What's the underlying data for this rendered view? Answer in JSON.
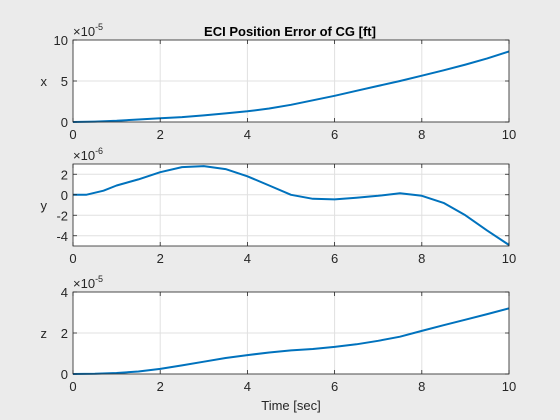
{
  "figure": {
    "title": "ECI Position Error of CG [ft]",
    "background": "#ebebeb",
    "axes_background": "#ffffff",
    "line_color": "#0072bd"
  },
  "chart_data": [
    {
      "type": "line",
      "title": "ECI Position Error of CG [ft]",
      "xlabel": "",
      "ylabel": "x",
      "xlim": [
        0,
        10
      ],
      "ylim": [
        0,
        10
      ],
      "exponent": {
        "base": "×10",
        "power": "-5"
      },
      "xticks": [
        0,
        2,
        4,
        6,
        8,
        10
      ],
      "xtick_labels": [
        "0",
        "2",
        "4",
        "6",
        "8",
        "10"
      ],
      "yticks": [
        0,
        5,
        10
      ],
      "ytick_labels": [
        "0",
        "5",
        "10"
      ],
      "grid": true,
      "series": [
        {
          "name": "x",
          "x": [
            0,
            0.5,
            1,
            1.5,
            2,
            2.5,
            3,
            3.5,
            4,
            4.5,
            5,
            5.5,
            6,
            6.5,
            7,
            7.5,
            8,
            8.5,
            9,
            9.5,
            10
          ],
          "y": [
            0,
            0.05,
            0.15,
            0.3,
            0.45,
            0.6,
            0.8,
            1.05,
            1.3,
            1.65,
            2.1,
            2.65,
            3.2,
            3.8,
            4.4,
            5.0,
            5.65,
            6.3,
            7.0,
            7.75,
            8.6
          ]
        }
      ]
    },
    {
      "type": "line",
      "title": "",
      "xlabel": "",
      "ylabel": "y",
      "xlim": [
        0,
        10
      ],
      "ylim": [
        -5,
        3
      ],
      "exponent": {
        "base": "×10",
        "power": "-6"
      },
      "xticks": [
        0,
        2,
        4,
        6,
        8,
        10
      ],
      "xtick_labels": [
        "0",
        "2",
        "4",
        "6",
        "8",
        "10"
      ],
      "yticks": [
        -4,
        -2,
        0,
        2
      ],
      "ytick_labels": [
        "-4",
        "-2",
        "0",
        "2"
      ],
      "grid": true,
      "series": [
        {
          "name": "y",
          "x": [
            0,
            0.3,
            0.7,
            1,
            1.5,
            2,
            2.5,
            3,
            3.5,
            4,
            4.5,
            5,
            5.5,
            6,
            6.5,
            7,
            7.5,
            8,
            8.5,
            9,
            9.5,
            10
          ],
          "y": [
            0,
            0,
            0.4,
            0.9,
            1.5,
            2.2,
            2.7,
            2.8,
            2.5,
            1.8,
            0.9,
            0.0,
            -0.4,
            -0.45,
            -0.3,
            -0.1,
            0.15,
            -0.1,
            -0.8,
            -2.0,
            -3.5,
            -4.9
          ]
        }
      ]
    },
    {
      "type": "line",
      "title": "",
      "xlabel": "Time [sec]",
      "ylabel": "z",
      "xlim": [
        0,
        10
      ],
      "ylim": [
        0,
        4
      ],
      "exponent": {
        "base": "×10",
        "power": "-5"
      },
      "xticks": [
        0,
        2,
        4,
        6,
        8,
        10
      ],
      "xtick_labels": [
        "0",
        "2",
        "4",
        "6",
        "8",
        "10"
      ],
      "yticks": [
        0,
        2,
        4
      ],
      "ytick_labels": [
        "0",
        "2",
        "4"
      ],
      "grid": true,
      "series": [
        {
          "name": "z",
          "x": [
            0,
            0.5,
            1,
            1.5,
            2,
            2.5,
            3,
            3.5,
            4,
            4.5,
            5,
            5.5,
            6,
            6.5,
            7,
            7.5,
            8,
            8.5,
            9,
            9.5,
            10
          ],
          "y": [
            0,
            0.01,
            0.05,
            0.12,
            0.25,
            0.42,
            0.6,
            0.78,
            0.92,
            1.05,
            1.15,
            1.22,
            1.32,
            1.45,
            1.62,
            1.82,
            2.1,
            2.38,
            2.65,
            2.92,
            3.2
          ]
        }
      ]
    }
  ]
}
